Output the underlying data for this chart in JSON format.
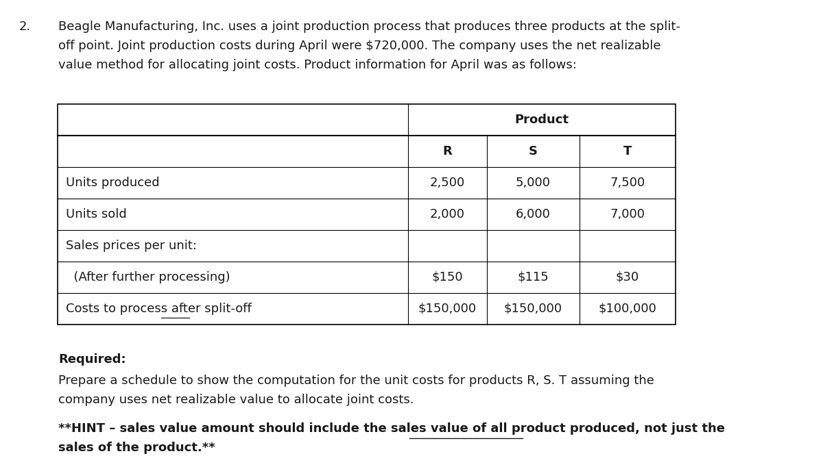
{
  "problem_number": "2.",
  "intro_line1": "Beagle Manufacturing, Inc. uses a joint production process that produces three products at the split-",
  "intro_line2": "off point. Joint production costs during April were $720,000. The company uses the net realizable",
  "intro_line3": "value method for allocating joint costs. Product information for April was as follows:",
  "table_header": "Product",
  "col_headers": [
    "R",
    "S",
    "T"
  ],
  "rows": [
    {
      "label": "Units produced",
      "values": [
        "2,500",
        "5,000",
        "7,500"
      ],
      "underline": ""
    },
    {
      "label": "Units sold",
      "values": [
        "2,000",
        "6,000",
        "7,000"
      ],
      "underline": ""
    },
    {
      "label": "Sales prices per unit:",
      "values": [
        "",
        "",
        ""
      ],
      "underline": ""
    },
    {
      "label": "  (After further processing)",
      "values": [
        "$150",
        "$115",
        "$30"
      ],
      "underline": ""
    },
    {
      "label": "Costs to process after split-off",
      "values": [
        "$150,000",
        "$150,000",
        "$100,000"
      ],
      "underline": "after"
    }
  ],
  "required_label": "Required:",
  "required_line1": "Prepare a schedule to show the computation for the unit costs for products R, S. T assuming the",
  "required_line2": "company uses net realizable value to allocate joint costs.",
  "hint_before": "**HINT – sales value amount should include the sales value of ",
  "hint_underlined": "all product produced",
  "hint_after_line1": ", not just the",
  "hint_line2": "sales of the product.**",
  "bg_color": "#ffffff",
  "text_color": "#1a1a1a",
  "font_size": 13
}
